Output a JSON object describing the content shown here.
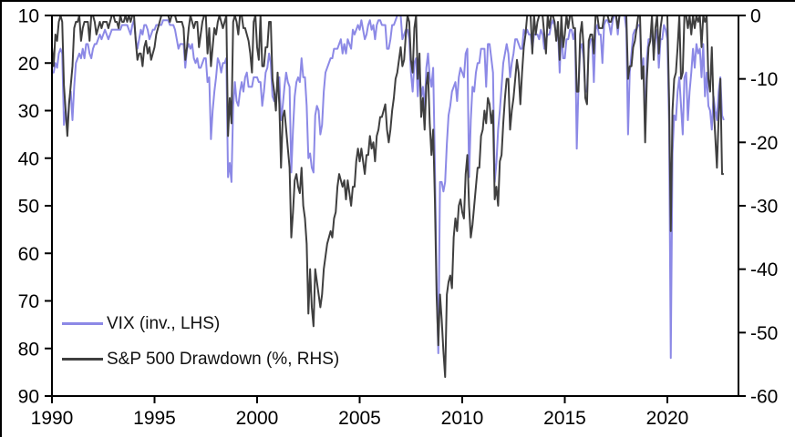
{
  "figure": {
    "background": "#ffffff",
    "frame_color": "#000000",
    "text_color": "#000000"
  },
  "chart_data": {
    "type": "line",
    "title": "",
    "xlabel": "",
    "ylabel_left": "",
    "ylabel_right": "",
    "grid": false,
    "legend_position": "bottom-left-inside",
    "x_axis": {
      "ticks": [
        1990,
        1995,
        2000,
        2005,
        2010,
        2015,
        2020
      ],
      "range": [
        1990,
        2023.5
      ]
    },
    "left_axis": {
      "ticks": [
        10,
        20,
        30,
        40,
        50,
        60,
        70,
        80,
        90
      ],
      "range": [
        10,
        90
      ],
      "inverted": true
    },
    "right_axis": {
      "ticks": [
        0,
        -10,
        -20,
        -30,
        -40,
        -50,
        -60
      ],
      "range": [
        0,
        -60
      ]
    },
    "sampling": "monthly",
    "x_start": 1990.0,
    "x_interval_years": 0.0833333,
    "series": [
      {
        "name": "VIX (inv., LHS)",
        "axis": "left",
        "color": "#8c89e6",
        "values": [
          22,
          22,
          20,
          21,
          18,
          17,
          18,
          33,
          30,
          34,
          28,
          26,
          32,
          25,
          20,
          19,
          18,
          19,
          17,
          19,
          16,
          16,
          18,
          19,
          17,
          16,
          16,
          15,
          14,
          15,
          14,
          13,
          14,
          15,
          14,
          13,
          13,
          13,
          13,
          13,
          13,
          12,
          12,
          12,
          12,
          13,
          14,
          12,
          11,
          15,
          17,
          15,
          13,
          14,
          12,
          12,
          13,
          15,
          14,
          13,
          13,
          12,
          12,
          12,
          12,
          11,
          11,
          11,
          11,
          12,
          12,
          12,
          13,
          15,
          17,
          16,
          16,
          16,
          21,
          17,
          16,
          17,
          16,
          19,
          20,
          19,
          21,
          21,
          20,
          19,
          19,
          24,
          23,
          36,
          30,
          26,
          23,
          19,
          20,
          22,
          20,
          20,
          19,
          44,
          41,
          45,
          29,
          24,
          28,
          29,
          26,
          24,
          26,
          23,
          22,
          25,
          25,
          25,
          23,
          23,
          23,
          24,
          24,
          29,
          26,
          22,
          21,
          18,
          20,
          27,
          28,
          27,
          25,
          23,
          32,
          29,
          25,
          22,
          24,
          25,
          43,
          34,
          27,
          24,
          23,
          24,
          19,
          23,
          23,
          29,
          40,
          39,
          42,
          43,
          31,
          29,
          30,
          35,
          33,
          26,
          22,
          21,
          20,
          19,
          19,
          17,
          17,
          17,
          16,
          15,
          18,
          16,
          18,
          15,
          16,
          17,
          13,
          14,
          13,
          12,
          13,
          11,
          13,
          15,
          14,
          12,
          11,
          13,
          12,
          15,
          12,
          11,
          11,
          12,
          12,
          12,
          17,
          17,
          15,
          12,
          12,
          11,
          10,
          10,
          10,
          15,
          14,
          13,
          13,
          15,
          22,
          26,
          20,
          19,
          27,
          21,
          27,
          25,
          30,
          21,
          18,
          23,
          25,
          21,
          41,
          66,
          81,
          45,
          45,
          47,
          45,
          37,
          31,
          29,
          26,
          25,
          24,
          28,
          23,
          21,
          22,
          23,
          18,
          17,
          44,
          32,
          25,
          26,
          22,
          20,
          20,
          17,
          17,
          17,
          25,
          16,
          16,
          19,
          22,
          45,
          41,
          34,
          30,
          25,
          20,
          18,
          16,
          18,
          23,
          20,
          18,
          15,
          15,
          16,
          17,
          17,
          13,
          14,
          13,
          14,
          14,
          17,
          14,
          14,
          14,
          15,
          13,
          14,
          17,
          15,
          14,
          14,
          12,
          11,
          12,
          14,
          13,
          22,
          13,
          19,
          19,
          15,
          15,
          13,
          13,
          15,
          13,
          38,
          25,
          17,
          16,
          19,
          26,
          26,
          17,
          15,
          15,
          24,
          13,
          12,
          14,
          14,
          20,
          12,
          11,
          11,
          12,
          14,
          11,
          10,
          10,
          14,
          10,
          10,
          10,
          10,
          13,
          35,
          22,
          18,
          14,
          13,
          13,
          12,
          12,
          23,
          19,
          34,
          19,
          15,
          15,
          13,
          18,
          15,
          13,
          21,
          15,
          15,
          12,
          13,
          15,
          33,
          82,
          39,
          31,
          32,
          26,
          23,
          29,
          35,
          23,
          22,
          32,
          26,
          22,
          17,
          21,
          16,
          18,
          17,
          23,
          16,
          27,
          22,
          29,
          30,
          34,
          27,
          30,
          32,
          26,
          23,
          31,
          32
        ]
      },
      {
        "name": "S&P 500 Drawdown (%, RHS)",
        "axis": "right",
        "color": "#3f3f3f",
        "values": [
          -5,
          -8,
          -3,
          -4,
          -1,
          0,
          -1,
          -11,
          -15,
          -19,
          -14,
          -11,
          -8,
          -2,
          -1,
          -1,
          0,
          -4,
          -2,
          -1,
          -1,
          -1,
          -4,
          0,
          0,
          -1,
          -3,
          -2,
          -1,
          -2,
          -1,
          -1,
          -1,
          -2,
          -1,
          0,
          0,
          -1,
          -1,
          -2,
          0,
          -1,
          -1,
          0,
          -1,
          0,
          -1,
          0,
          0,
          -4,
          -7,
          -6,
          -6,
          -8,
          -5,
          -4,
          -6,
          -5,
          -7,
          -6,
          -5,
          -3,
          -2,
          -1,
          0,
          0,
          0,
          0,
          0,
          -1,
          0,
          0,
          0,
          -1,
          -1,
          -1,
          -1,
          -2,
          -7,
          -5,
          -2,
          0,
          -1,
          -2,
          -1,
          -1,
          -5,
          -3,
          -1,
          0,
          0,
          -6,
          -2,
          -8,
          -5,
          -2,
          -3,
          -1,
          0,
          -1,
          -2,
          -1,
          0,
          -19,
          -13,
          -17,
          -1,
          0,
          -1,
          -3,
          0,
          0,
          -2,
          -2,
          -3,
          -4,
          -6,
          -9,
          -1,
          0,
          -5,
          -7,
          0,
          -8,
          -8,
          -5,
          -5,
          -1,
          -1,
          -10,
          -12,
          -15,
          -9,
          -14,
          -24,
          -16,
          -15,
          -18,
          -21,
          -24,
          -35,
          -31,
          -26,
          -25,
          -27,
          -28,
          -24,
          -30,
          -32,
          -36,
          -47,
          -40,
          -46,
          -49,
          -40,
          -42,
          -44,
          -46,
          -44,
          -40,
          -38,
          -36,
          -35,
          -34,
          -35,
          -32,
          -31,
          -27,
          -25,
          -26,
          -27,
          -26,
          -29,
          -26,
          -28,
          -30,
          -27,
          -27,
          -23,
          -21,
          -23,
          -21,
          -23,
          -25,
          -22,
          -22,
          -19,
          -21,
          -20,
          -23,
          -19,
          -18,
          -16,
          -16,
          -15,
          -14,
          -18,
          -20,
          -18,
          -15,
          -13,
          -10,
          -9,
          -7,
          -5,
          -8,
          -7,
          -3,
          0,
          -1,
          -7,
          -9,
          -2,
          0,
          -10,
          -6,
          -16,
          -13,
          -18,
          -11,
          -9,
          -17,
          -22,
          -18,
          -29,
          -44,
          -52,
          -44,
          -48,
          -53,
          -57,
          -44,
          -42,
          -41,
          -43,
          -35,
          -32,
          -34,
          -30,
          -29,
          -31,
          -32,
          -25,
          -22,
          -30,
          -35,
          -33,
          -30,
          -27,
          -24,
          -24,
          -19,
          -18,
          -15,
          -17,
          -13,
          -14,
          -17,
          -15,
          -29,
          -27,
          -30,
          -23,
          -22,
          -17,
          -13,
          -10,
          -10,
          -18,
          -15,
          -13,
          -10,
          -7,
          -9,
          -14,
          -9,
          -5,
          -3,
          0,
          0,
          0,
          -6,
          0,
          -3,
          -1,
          0,
          0,
          0,
          -3,
          -6,
          0,
          -2,
          0,
          0,
          -1,
          -4,
          -1,
          -7,
          0,
          -5,
          -3,
          0,
          -2,
          0,
          0,
          -2,
          -2,
          -12,
          -12,
          -3,
          -1,
          -5,
          -13,
          -14,
          -4,
          -3,
          -3,
          -6,
          0,
          0,
          -2,
          -2,
          -2,
          0,
          0,
          0,
          -1,
          -1,
          0,
          0,
          0,
          -2,
          0,
          0,
          0,
          0,
          0,
          -10,
          -8,
          -8,
          -5,
          -4,
          -2,
          0,
          0,
          -10,
          -8,
          -20,
          -10,
          -5,
          -4,
          0,
          -7,
          -2,
          0,
          -6,
          -2,
          0,
          0,
          0,
          0,
          -13,
          -34,
          -15,
          -10,
          -9,
          -5,
          0,
          -10,
          -9,
          0,
          0,
          -2,
          0,
          -3,
          0,
          -2,
          0,
          -1,
          0,
          -5,
          0,
          -1,
          0,
          -10,
          -12,
          -5,
          -14,
          -19,
          -24,
          -16,
          -10,
          -25,
          -25
        ]
      }
    ]
  }
}
